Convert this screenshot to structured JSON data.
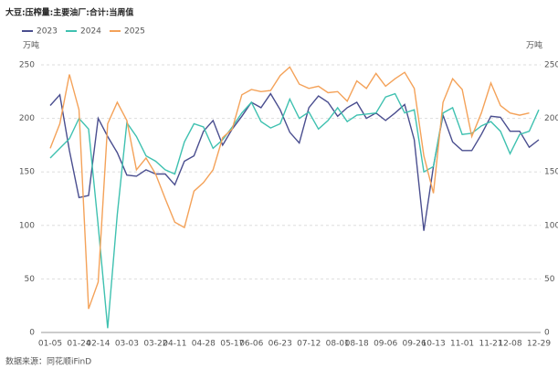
{
  "chart_data": {
    "type": "line",
    "title": "大豆:压榨量:主要油厂:合计:当周值",
    "y_unit": "万吨",
    "source": "数据来源：同花顺iFinD",
    "categories": [
      "01-05",
      null,
      null,
      "01-24",
      null,
      "02-14",
      null,
      null,
      "03-03",
      null,
      null,
      "03-22",
      null,
      "04-11",
      null,
      null,
      "04-28",
      null,
      null,
      "05-17",
      null,
      "06-06",
      null,
      null,
      "06-23",
      null,
      null,
      "07-12",
      null,
      null,
      "08-01",
      null,
      "08-18",
      null,
      null,
      "09-06",
      null,
      null,
      "09-26",
      null,
      "10-13",
      null,
      null,
      "11-01",
      null,
      null,
      "11-21",
      null,
      "12-08",
      null,
      null,
      "12-29"
    ],
    "series": [
      {
        "name": "2023",
        "color": "#4a4e8f",
        "values": [
          212,
          222,
          170,
          126,
          128,
          200,
          183,
          168,
          147,
          146,
          152,
          148,
          148,
          138,
          160,
          165,
          188,
          198,
          175,
          190,
          202,
          215,
          210,
          223,
          208,
          187,
          177,
          210,
          221,
          215,
          202,
          210,
          215,
          200,
          205,
          198,
          205,
          213,
          180,
          95,
          155,
          203,
          178,
          170,
          170,
          185,
          202,
          201,
          188,
          188,
          173,
          180
        ]
      },
      {
        "name": "2024",
        "color": "#3fc1b0",
        "values": [
          163,
          172,
          181,
          200,
          190,
          100,
          4,
          110,
          196,
          183,
          165,
          160,
          152,
          148,
          178,
          195,
          192,
          172,
          180,
          192,
          205,
          215,
          197,
          191,
          195,
          218,
          200,
          206,
          190,
          198,
          210,
          197,
          203,
          204,
          205,
          220,
          223,
          205,
          208,
          150,
          155,
          205,
          210,
          185,
          186,
          193,
          197,
          188,
          167,
          185,
          188,
          208
        ]
      },
      {
        "name": "2025",
        "color": "#f4a259",
        "values": [
          172,
          195,
          241,
          208,
          22,
          47,
          195,
          215,
          198,
          152,
          163,
          148,
          125,
          103,
          98,
          132,
          140,
          152,
          182,
          190,
          222,
          227,
          225,
          226,
          240,
          248,
          232,
          228,
          230,
          224,
          225,
          216,
          235,
          228,
          242,
          230,
          237,
          243,
          228,
          165,
          130,
          215,
          237,
          227,
          183,
          205,
          233,
          212,
          205,
          203,
          205,
          null
        ]
      }
    ],
    "ylim": [
      0,
      250
    ],
    "yticks": [
      0,
      50,
      100,
      150,
      200,
      250
    ],
    "grid": true
  }
}
